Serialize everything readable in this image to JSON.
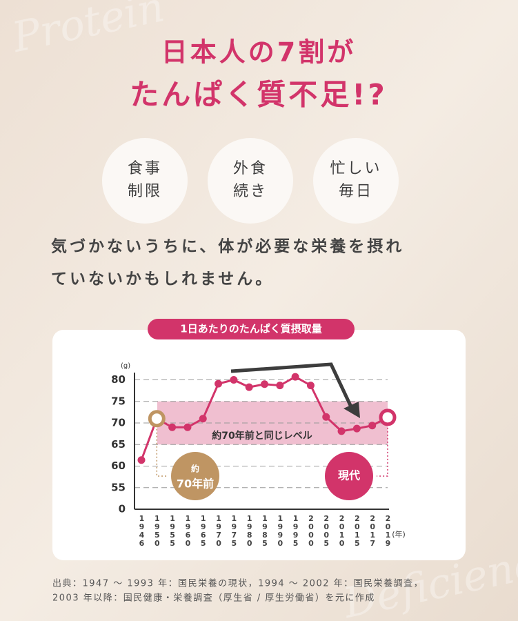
{
  "watermarks": [
    "Protein",
    "Deficiency"
  ],
  "title": [
    "日本人の7割が",
    "たんぱく質不足!?"
  ],
  "reasons": [
    [
      "食事",
      "制限"
    ],
    [
      "外食",
      "続き"
    ],
    [
      "忙しい",
      "毎日"
    ]
  ],
  "body": [
    "気づかないうちに、体が必要な栄養を摂れ",
    "ていないかもしれません。"
  ],
  "source": [
    "出典：1947 〜 1993 年：国民栄養の現状，1994 〜 2002 年：国民栄養調査，",
    "2003 年以降：国民健康・栄養調査（厚生省 / 厚生労働省）を元に作成"
  ],
  "chart_data": {
    "type": "line",
    "title": "1日あたりのたんぱく質摂取量",
    "y_unit": "(g)",
    "x_unit": "(年)",
    "categories": [
      "1946",
      "1950",
      "1955",
      "1960",
      "1965",
      "1970",
      "1975",
      "1980",
      "1985",
      "1990",
      "1995",
      "2000",
      "2005",
      "2010",
      "2015",
      "2017",
      "2019"
    ],
    "series": [
      {
        "name": "たんぱく質摂取量",
        "color": "#d2346a",
        "values": [
          61.4,
          71,
          69,
          69,
          71,
          79.1,
          80,
          78.3,
          79,
          78.7,
          80.7,
          78.7,
          71.4,
          68.1,
          68.7,
          69.4,
          71.3
        ]
      }
    ],
    "ylim": [
      0,
      82
    ],
    "yticks": [
      0,
      55,
      60,
      65,
      70,
      75,
      80
    ],
    "axis_break": true,
    "grid": true,
    "band": {
      "from": 65,
      "to": 75,
      "color": "#f0bfd0",
      "label": "約70年前と同じレベル"
    },
    "highlights": [
      {
        "category": "1950",
        "color": "#bf9563",
        "label": [
          "約",
          "70年前"
        ]
      },
      {
        "category": "2019",
        "color": "#d2346a",
        "label": [
          "現代"
        ]
      }
    ]
  }
}
